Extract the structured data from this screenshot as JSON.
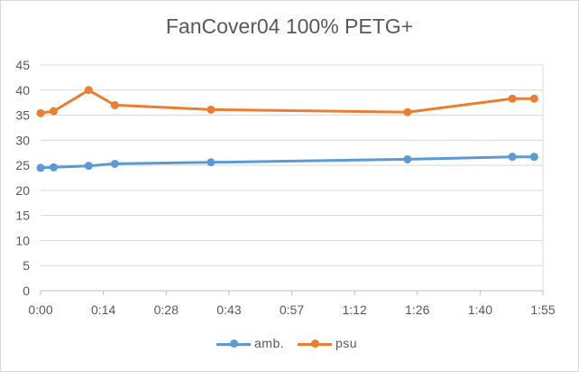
{
  "chart_data": {
    "type": "line",
    "title": "FanCover04 100% PETG+",
    "xlabel": "",
    "ylabel": "",
    "x_ticks": [
      "0:00",
      "0:14",
      "0:28",
      "0:43",
      "0:57",
      "1:12",
      "1:26",
      "1:40",
      "1:55"
    ],
    "y_ticks": [
      "0",
      "5",
      "10",
      "15",
      "20",
      "25",
      "30",
      "35",
      "40",
      "45"
    ],
    "xlim_minutes": [
      0,
      115
    ],
    "ylim": [
      0,
      45
    ],
    "grid": "horizontal",
    "legend_position": "bottom",
    "series": [
      {
        "name": "amb.",
        "color": "#5b9bd5",
        "x_minutes": [
          0,
          3,
          11,
          17,
          39,
          84,
          108,
          113
        ],
        "values": [
          24.5,
          24.6,
          24.9,
          25.3,
          25.6,
          26.2,
          26.7,
          26.7
        ]
      },
      {
        "name": "psu",
        "color": "#ed7d31",
        "x_minutes": [
          0,
          3,
          11,
          17,
          39,
          84,
          108,
          113
        ],
        "values": [
          35.4,
          35.8,
          40.0,
          37.0,
          36.1,
          35.6,
          38.3,
          38.3
        ]
      }
    ]
  }
}
